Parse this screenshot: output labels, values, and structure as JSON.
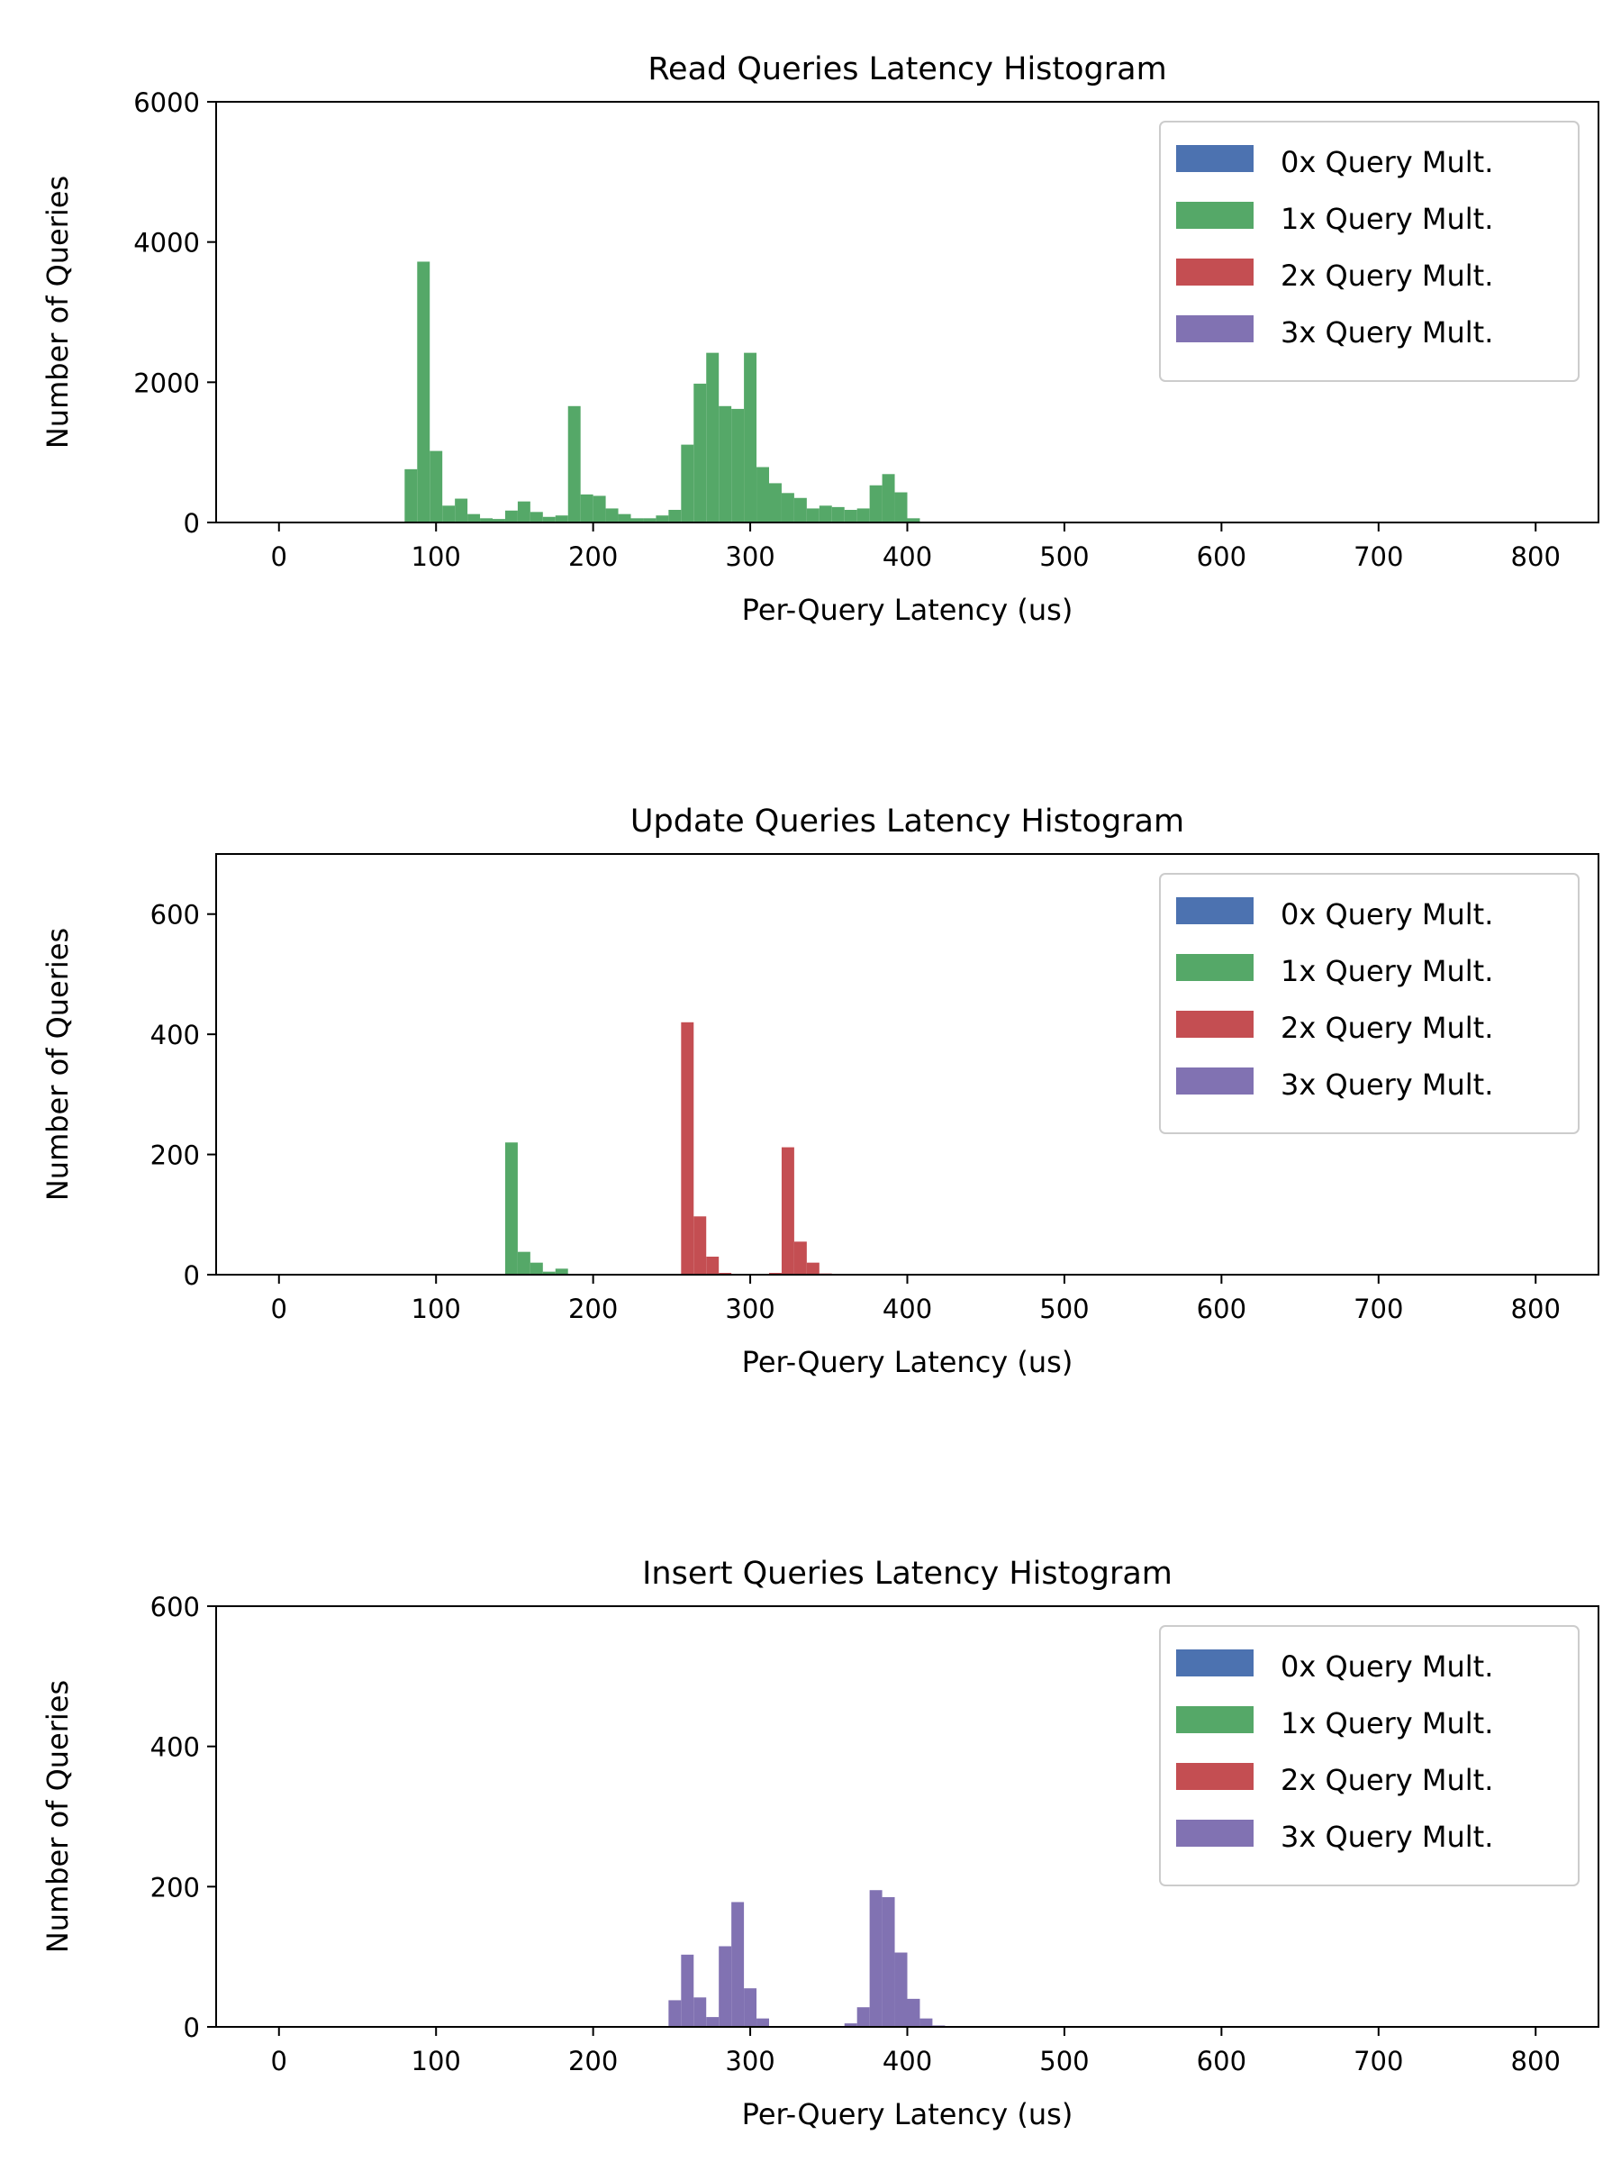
{
  "colors": {
    "0x": "#4c72b0",
    "1x": "#55a868",
    "2x": "#c44e52",
    "3x": "#8172b2"
  },
  "chart_data": [
    {
      "type": "bar",
      "title": "Read Queries Latency Histogram",
      "xlabel": "Per-Query Latency (us)",
      "ylabel": "Number of Queries",
      "xlim": [
        -40,
        840
      ],
      "ylim": [
        0,
        6000
      ],
      "xticks": [
        0,
        100,
        200,
        300,
        400,
        500,
        600,
        700,
        800
      ],
      "yticks": [
        0,
        2000,
        4000,
        6000
      ],
      "bin_width": 8,
      "legend": [
        "0x Query Mult.",
        "1x Query Mult.",
        "2x Query Mult.",
        "3x Query Mult."
      ],
      "legend_position": "top-right",
      "series": [
        {
          "name": "0x Query Mult.",
          "color_key": "0x",
          "bins": []
        },
        {
          "name": "1x Query Mult.",
          "color_key": "1x",
          "bins": [
            [
              80,
              760
            ],
            [
              88,
              3720
            ],
            [
              96,
              1020
            ],
            [
              104,
              240
            ],
            [
              112,
              340
            ],
            [
              120,
              120
            ],
            [
              128,
              60
            ],
            [
              136,
              50
            ],
            [
              144,
              170
            ],
            [
              152,
              300
            ],
            [
              160,
              150
            ],
            [
              168,
              80
            ],
            [
              176,
              100
            ],
            [
              184,
              1660
            ],
            [
              192,
              400
            ],
            [
              200,
              380
            ],
            [
              208,
              200
            ],
            [
              216,
              120
            ],
            [
              224,
              60
            ],
            [
              232,
              60
            ],
            [
              240,
              100
            ],
            [
              248,
              180
            ],
            [
              256,
              1110
            ],
            [
              264,
              1980
            ],
            [
              272,
              2420
            ],
            [
              280,
              1660
            ],
            [
              288,
              1620
            ],
            [
              296,
              2420
            ],
            [
              304,
              790
            ],
            [
              312,
              560
            ],
            [
              320,
              420
            ],
            [
              328,
              350
            ],
            [
              336,
              200
            ],
            [
              344,
              240
            ],
            [
              352,
              220
            ],
            [
              360,
              180
            ],
            [
              368,
              200
            ],
            [
              376,
              530
            ],
            [
              384,
              690
            ],
            [
              392,
              430
            ],
            [
              400,
              60
            ]
          ]
        },
        {
          "name": "2x Query Mult.",
          "color_key": "2x",
          "bins": []
        },
        {
          "name": "3x Query Mult.",
          "color_key": "3x",
          "bins": []
        }
      ]
    },
    {
      "type": "bar",
      "title": "Update Queries Latency Histogram",
      "xlabel": "Per-Query Latency (us)",
      "ylabel": "Number of Queries",
      "xlim": [
        -40,
        840
      ],
      "ylim": [
        0,
        700
      ],
      "xticks": [
        0,
        100,
        200,
        300,
        400,
        500,
        600,
        700,
        800
      ],
      "yticks": [
        0,
        200,
        400,
        600
      ],
      "bin_width": 8,
      "legend": [
        "0x Query Mult.",
        "1x Query Mult.",
        "2x Query Mult.",
        "3x Query Mult."
      ],
      "legend_position": "top-right",
      "series": [
        {
          "name": "0x Query Mult.",
          "color_key": "0x",
          "bins": []
        },
        {
          "name": "1x Query Mult.",
          "color_key": "1x",
          "bins": [
            [
              144,
              220
            ],
            [
              152,
              38
            ],
            [
              160,
              20
            ],
            [
              168,
              5
            ],
            [
              176,
              10
            ]
          ]
        },
        {
          "name": "2x Query Mult.",
          "color_key": "2x",
          "bins": [
            [
              256,
              420
            ],
            [
              264,
              97
            ],
            [
              272,
              30
            ],
            [
              280,
              3
            ],
            [
              288,
              1
            ],
            [
              312,
              3
            ],
            [
              320,
              212
            ],
            [
              328,
              55
            ],
            [
              336,
              20
            ],
            [
              344,
              2
            ]
          ]
        },
        {
          "name": "3x Query Mult.",
          "color_key": "3x",
          "bins": []
        }
      ]
    },
    {
      "type": "bar",
      "title": "Insert Queries Latency Histogram",
      "xlabel": "Per-Query Latency (us)",
      "ylabel": "Number of Queries",
      "xlim": [
        -40,
        840
      ],
      "ylim": [
        0,
        600
      ],
      "xticks": [
        0,
        100,
        200,
        300,
        400,
        500,
        600,
        700,
        800
      ],
      "yticks": [
        0,
        200,
        400,
        600
      ],
      "bin_width": 8,
      "legend": [
        "0x Query Mult.",
        "1x Query Mult.",
        "2x Query Mult.",
        "3x Query Mult."
      ],
      "legend_position": "top-right",
      "series": [
        {
          "name": "0x Query Mult.",
          "color_key": "0x",
          "bins": []
        },
        {
          "name": "1x Query Mult.",
          "color_key": "1x",
          "bins": []
        },
        {
          "name": "2x Query Mult.",
          "color_key": "2x",
          "bins": []
        },
        {
          "name": "3x Query Mult.",
          "color_key": "3x",
          "bins": [
            [
              248,
              38
            ],
            [
              256,
              103
            ],
            [
              264,
              42
            ],
            [
              272,
              14
            ],
            [
              280,
              115
            ],
            [
              288,
              178
            ],
            [
              296,
              55
            ],
            [
              304,
              12
            ],
            [
              360,
              5
            ],
            [
              368,
              28
            ],
            [
              376,
              195
            ],
            [
              384,
              185
            ],
            [
              392,
              106
            ],
            [
              400,
              40
            ],
            [
              408,
              12
            ],
            [
              416,
              2
            ]
          ]
        }
      ]
    }
  ]
}
